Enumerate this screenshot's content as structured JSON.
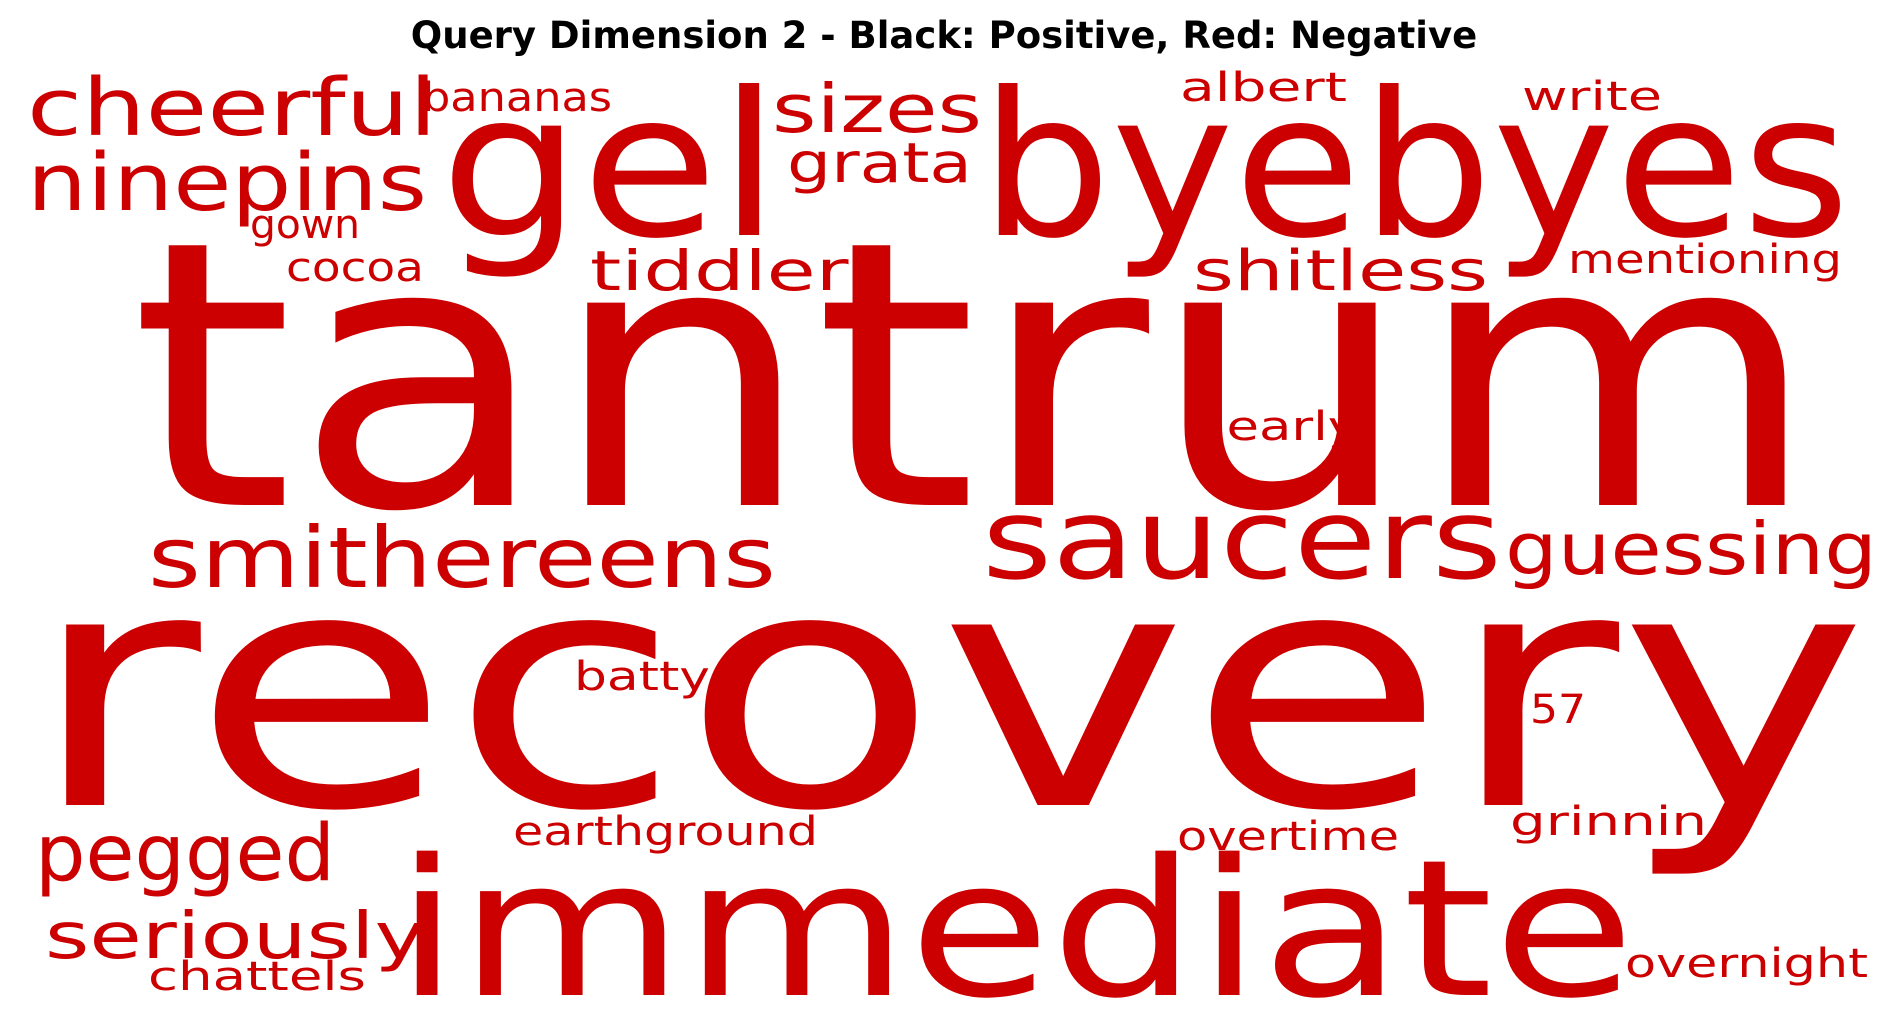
{
  "title": "Query Dimension 2 - Black: Positive, Red: Negative",
  "colors": {
    "positive": "#000000",
    "negative": "#cc0000",
    "background": "#ffffff"
  },
  "words": [
    {
      "text": "tantrum",
      "polarity": "negative"
    },
    {
      "text": "recovery",
      "polarity": "negative"
    },
    {
      "text": "byebyes",
      "polarity": "negative"
    },
    {
      "text": "gel",
      "polarity": "negative"
    },
    {
      "text": "immediate",
      "polarity": "negative"
    },
    {
      "text": "saucers",
      "polarity": "negative"
    },
    {
      "text": "smithereens",
      "polarity": "negative"
    },
    {
      "text": "guessing",
      "polarity": "negative"
    },
    {
      "text": "cheerful",
      "polarity": "negative"
    },
    {
      "text": "ninepins",
      "polarity": "negative"
    },
    {
      "text": "pegged",
      "polarity": "negative"
    },
    {
      "text": "seriously",
      "polarity": "negative"
    },
    {
      "text": "sizes",
      "polarity": "negative"
    },
    {
      "text": "tiddlers",
      "polarity": "negative"
    },
    {
      "text": "shitless",
      "polarity": "negative"
    },
    {
      "text": "grata",
      "polarity": "negative"
    },
    {
      "text": "bananas",
      "polarity": "negative"
    },
    {
      "text": "albert",
      "polarity": "negative"
    },
    {
      "text": "write",
      "polarity": "negative"
    },
    {
      "text": "gown",
      "polarity": "negative"
    },
    {
      "text": "cocoa",
      "polarity": "negative"
    },
    {
      "text": "mentioning",
      "polarity": "negative"
    },
    {
      "text": "dearly",
      "polarity": "negative"
    },
    {
      "text": "batty",
      "polarity": "negative"
    },
    {
      "text": "57",
      "polarity": "negative"
    },
    {
      "text": "earthground",
      "polarity": "negative"
    },
    {
      "text": "overtime",
      "polarity": "negative"
    },
    {
      "text": "grinnin",
      "polarity": "negative"
    },
    {
      "text": "chattels",
      "polarity": "negative"
    },
    {
      "text": "overnight",
      "polarity": "negative"
    }
  ]
}
